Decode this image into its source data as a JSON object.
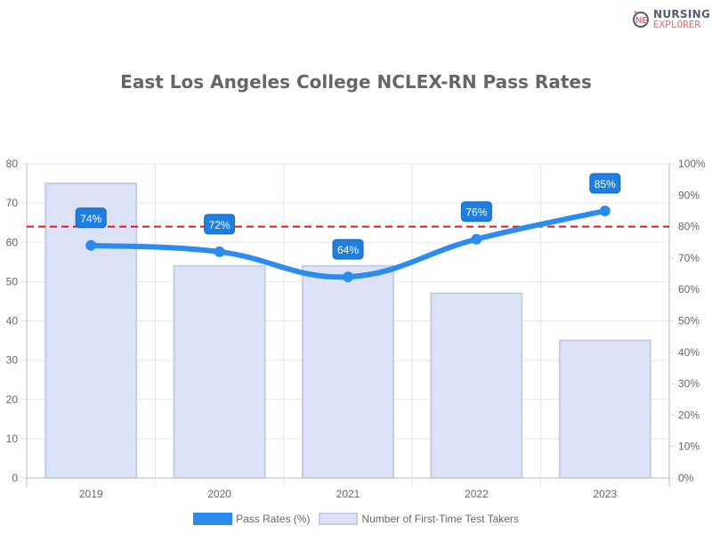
{
  "logo": {
    "line1": "NURSING",
    "line2": "EXPLORER"
  },
  "chart_data": {
    "type": "bar+line",
    "title": "East Los Angeles College NCLEX-RN Pass Rates",
    "categories": [
      "2019",
      "2020",
      "2021",
      "2022",
      "2023"
    ],
    "series": [
      {
        "name": "Pass Rates (%)",
        "type": "line",
        "axis": "right",
        "values": [
          74,
          72,
          64,
          76,
          85
        ],
        "color": "#2b8cee",
        "labels": [
          "74%",
          "72%",
          "64%",
          "76%",
          "85%"
        ]
      },
      {
        "name": "Number of First-Time Test Takers",
        "type": "bar",
        "axis": "left",
        "values": [
          75,
          54,
          54,
          47,
          35
        ],
        "color": "#dce3f6"
      }
    ],
    "reference_line": {
      "axis": "right",
      "value": 80,
      "color": "#e8141c",
      "style": "dashed"
    },
    "y_left": {
      "range": [
        0,
        80
      ],
      "ticks": [
        "0",
        "10",
        "20",
        "30",
        "40",
        "50",
        "60",
        "70",
        "80"
      ]
    },
    "y_right": {
      "range": [
        0,
        100
      ],
      "ticks": [
        "0%",
        "10%",
        "20%",
        "30%",
        "40%",
        "50%",
        "60%",
        "70%",
        "80%",
        "90%",
        "100%"
      ]
    },
    "grid": true,
    "legend": "bottom"
  }
}
